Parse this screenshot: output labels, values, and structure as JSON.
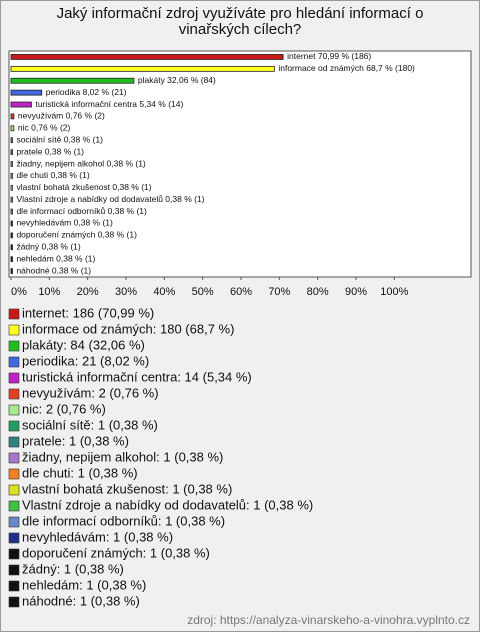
{
  "chart_data": {
    "type": "barh",
    "title": "Jaký informační zdroj využíváte pro hledání informací o vinařských cílech?",
    "values": [
      70.99,
      68.7,
      32.06,
      8.02,
      5.34,
      0.76,
      0.76,
      0.38,
      0.38,
      0.38,
      0.38,
      0.38,
      0.38,
      0.38,
      0.38,
      0.38,
      0.38,
      0.38,
      0.38
    ],
    "value_labels": [
      "internet 70,99 % (186)",
      "informace od známých 68,7 % (180)",
      "plakáty 32,06 % (84)",
      "periodika 8,02 % (21)",
      "turistická informační centra 5,34 % (14)",
      "nevyužívám 0,76 % (2)",
      "nic 0,76 % (2)",
      "sociální sítě 0,38 % (1)",
      "pratele 0,38 % (1)",
      "žiadny, nepijem alkohol 0,38 % (1)",
      "dle chuti 0,38 % (1)",
      "vlastní bohatá zkušenost 0,38 % (1)",
      "Vlastní zdroje a nabídky od dodavatelů 0,38 % (1)",
      "dle informací odborníků 0,38 % (1)",
      "nevyhledávám 0,38 % (1)",
      "doporučení známých 0,38 % (1)",
      "žádný 0,38 % (1)",
      "nehledám 0,38 % (1)",
      "náhodné 0,38 % (1)"
    ],
    "legend_labels": [
      "internet: 186 (70,99 %)",
      "informace od známých: 180 (68,7 %)",
      "plakáty: 84 (32,06 %)",
      "periodika: 21 (8,02 %)",
      "turistická informační centra: 14 (5,34 %)",
      "nevyužívám: 2 (0,76 %)",
      "nic: 2 (0,76 %)",
      "sociální sítě: 1 (0,38 %)",
      "pratele: 1 (0,38 %)",
      "žiadny, nepijem alkohol: 1 (0,38 %)",
      "dle chuti: 1 (0,38 %)",
      "vlastní bohatá zkušenost: 1 (0,38 %)",
      "Vlastní zdroje a nabídky od dodavatelů: 1 (0,38 %)",
      "dle informací odborníků: 1 (0,38 %)",
      "nevyhledávám: 1 (0,38 %)",
      "doporučení známých: 1 (0,38 %)",
      "žádný: 1 (0,38 %)",
      "nehledám: 1 (0,38 %)",
      "náhodné: 1 (0,38 %)"
    ],
    "colors": [
      "#c81818",
      "#ffff20",
      "#20c020",
      "#4068e0",
      "#c020c8",
      "#e04020",
      "#a8e890",
      "#20a060",
      "#2f8080",
      "#a878c8",
      "#f08020",
      "#d8e020",
      "#40c040",
      "#6888c8",
      "#203088",
      "#111111",
      "#111111",
      "#111111",
      "#111111"
    ],
    "xlim": [
      0,
      120
    ],
    "xticks": [
      {
        "value": 0,
        "label": "0%"
      },
      {
        "value": 10,
        "label": "10%"
      },
      {
        "value": 20,
        "label": "20%"
      },
      {
        "value": 30,
        "label": "30%"
      },
      {
        "value": 40,
        "label": "40%"
      },
      {
        "value": 50,
        "label": "50%"
      },
      {
        "value": 60,
        "label": "60%"
      },
      {
        "value": 70,
        "label": "70%"
      },
      {
        "value": 80,
        "label": "80%"
      },
      {
        "value": 90,
        "label": "90%"
      },
      {
        "value": 100,
        "label": "100%"
      }
    ],
    "source": "zdroj: https://analyza-vinarskeho-a-vinohra.vyplnto.cz"
  }
}
